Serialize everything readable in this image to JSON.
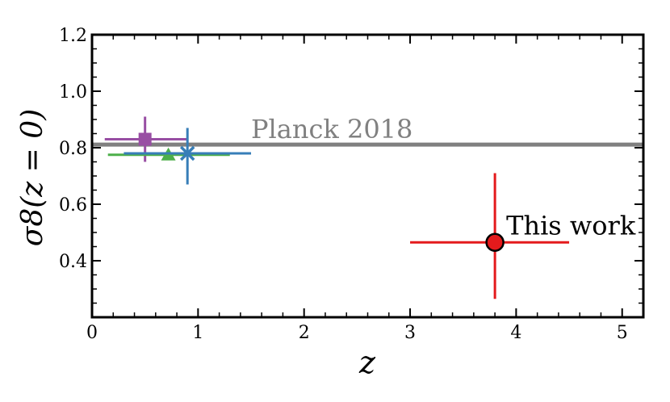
{
  "chart_data": {
    "type": "scatter",
    "title": "",
    "xlabel": "z",
    "ylabel": "σ8(z = 0)",
    "xlim": [
      0,
      5.2
    ],
    "ylim": [
      0.2,
      1.2
    ],
    "grid": false,
    "x_ticks": [
      0,
      1,
      2,
      3,
      4,
      5
    ],
    "y_ticks": [
      0.4,
      0.6,
      0.8,
      1.0,
      1.2
    ],
    "x_tick_labels": [
      "0",
      "1",
      "2",
      "3",
      "4",
      "5"
    ],
    "y_tick_labels": [
      "0.4",
      "0.6",
      "0.8",
      "1.0",
      "1.2"
    ],
    "reference_line": {
      "label": "Planck 2018",
      "y": 0.811,
      "color": "#808080"
    },
    "series": [
      {
        "marker": "square",
        "color": "#984ea3",
        "x": 0.5,
        "y": 0.83,
        "x_err": [
          0.38,
          0.4
        ],
        "y_err": [
          0.08,
          0.08
        ]
      },
      {
        "marker": "triangle",
        "color": "#4daf4a",
        "x": 0.72,
        "y": 0.775,
        "x_err": [
          0.57,
          0.58
        ],
        "y_err": [
          0,
          0
        ]
      },
      {
        "marker": "x",
        "color": "#377eb8",
        "x": 0.9,
        "y": 0.78,
        "x_err": [
          0.6,
          0.6
        ],
        "y_err": [
          0.11,
          0.09
        ]
      },
      {
        "marker": "circle",
        "color": "#e41a1c",
        "x": 3.8,
        "y": 0.465,
        "x_err": [
          0.8,
          0.7
        ],
        "y_err": [
          0.2,
          0.245
        ],
        "label": "This work"
      }
    ]
  }
}
